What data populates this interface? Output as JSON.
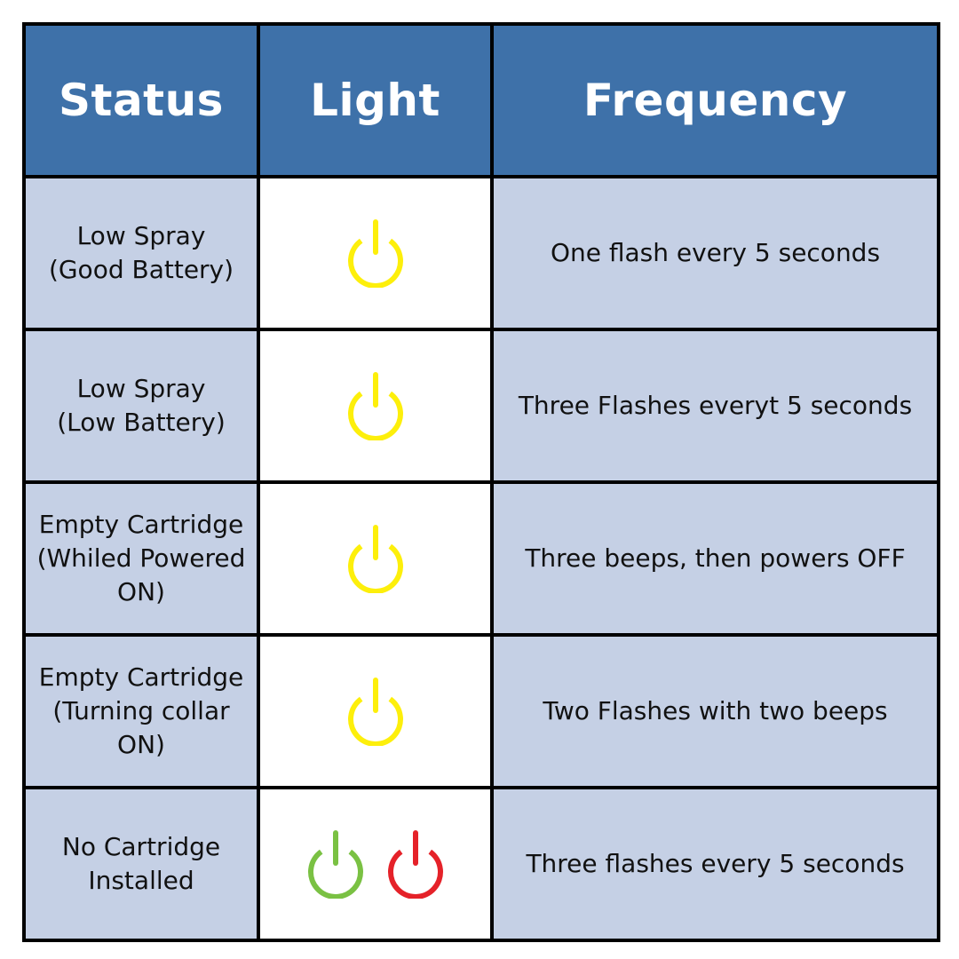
{
  "colors": {
    "header_bg": "#3e71a9",
    "row_bg": "#c5d0e5",
    "light_cell_bg": "#ffffff",
    "border": "#000000",
    "header_text": "#ffffff",
    "yellow": "#fdef0b",
    "green": "#7ac143",
    "red": "#e52229"
  },
  "headers": {
    "status": "Status",
    "light": "Light",
    "frequency": "Frequency"
  },
  "rows": [
    {
      "status_lines": [
        "Low Spray",
        "(Good Battery)"
      ],
      "lights": [
        {
          "icon": "power-icon",
          "color": "yellow"
        }
      ],
      "frequency": "One flash every 5 seconds"
    },
    {
      "status_lines": [
        "Low Spray",
        "(Low Battery)"
      ],
      "lights": [
        {
          "icon": "power-icon",
          "color": "yellow"
        }
      ],
      "frequency": "Three Flashes everyt 5 seconds"
    },
    {
      "status_lines": [
        "Empty Cartridge",
        "(Whiled Powered",
        "ON)"
      ],
      "lights": [
        {
          "icon": "power-icon",
          "color": "yellow"
        }
      ],
      "frequency": "Three beeps, then powers OFF"
    },
    {
      "status_lines": [
        "Empty Cartridge",
        "(Turning collar",
        "ON)"
      ],
      "lights": [
        {
          "icon": "power-icon",
          "color": "yellow"
        }
      ],
      "frequency": "Two Flashes with two beeps"
    },
    {
      "status_lines": [
        "No Cartridge",
        "Installed"
      ],
      "lights": [
        {
          "icon": "power-icon",
          "color": "green"
        },
        {
          "icon": "power-icon",
          "color": "red"
        }
      ],
      "frequency": "Three flashes every 5 seconds"
    }
  ]
}
